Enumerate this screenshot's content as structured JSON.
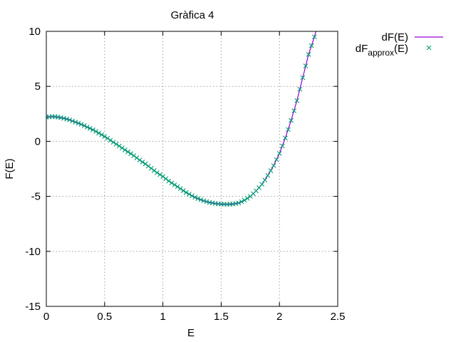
{
  "chart_data": {
    "type": "line",
    "title": "Gràfica 4",
    "xlabel": "E",
    "ylabel": "F(E)",
    "xlim": [
      0,
      2.5
    ],
    "ylim": [
      -15,
      10
    ],
    "xticks": [
      "0",
      "0.5",
      "1",
      "1.5",
      "2",
      "2.5"
    ],
    "yticks": [
      "10",
      "5",
      "0",
      "-5",
      "-10",
      "-15"
    ],
    "xtick_values": [
      0,
      0.5,
      1,
      1.5,
      2,
      2.5
    ],
    "ytick_values": [
      10,
      5,
      0,
      -5,
      -10,
      -15
    ],
    "grid": true,
    "legend_position": "top-right, outside plot",
    "series": [
      {
        "name": "dF(E)",
        "style": "line",
        "color": "#9400d3",
        "x": [
          0,
          0.05,
          0.1,
          0.15,
          0.2,
          0.25,
          0.3,
          0.35,
          0.4,
          0.45,
          0.5,
          0.55,
          0.6,
          0.65,
          0.7,
          0.75,
          0.8,
          0.85,
          0.9,
          0.95,
          1.0,
          1.05,
          1.1,
          1.15,
          1.2,
          1.25,
          1.3,
          1.35,
          1.4,
          1.45,
          1.5,
          1.55,
          1.6,
          1.65,
          1.7,
          1.75,
          1.8,
          1.85,
          1.9,
          1.95,
          2.0,
          2.05,
          2.1,
          2.15,
          2.2,
          2.25,
          2.3,
          2.32
        ],
        "y": [
          2.2,
          2.25,
          2.2,
          2.1,
          1.95,
          1.75,
          1.55,
          1.3,
          1.05,
          0.75,
          0.45,
          0.1,
          -0.25,
          -0.6,
          -0.95,
          -1.3,
          -1.7,
          -2.05,
          -2.45,
          -2.85,
          -3.2,
          -3.6,
          -3.95,
          -4.3,
          -4.65,
          -4.95,
          -5.2,
          -5.4,
          -5.55,
          -5.65,
          -5.7,
          -5.72,
          -5.7,
          -5.6,
          -5.35,
          -5.0,
          -4.5,
          -3.9,
          -3.1,
          -2.2,
          -1.1,
          0.3,
          1.9,
          3.7,
          5.8,
          7.9,
          9.5,
          10.3
        ]
      },
      {
        "name": "dF_approx(E)",
        "name_main": "dF",
        "name_sub": "approx",
        "name_tail": "(E)",
        "style": "markers",
        "marker": "x",
        "color": "#009e73",
        "x": [
          0,
          0.025,
          0.05,
          0.075,
          0.1,
          0.125,
          0.15,
          0.175,
          0.2,
          0.225,
          0.25,
          0.275,
          0.3,
          0.325,
          0.35,
          0.375,
          0.4,
          0.425,
          0.45,
          0.475,
          0.5,
          0.525,
          0.55,
          0.575,
          0.6,
          0.625,
          0.65,
          0.675,
          0.7,
          0.725,
          0.75,
          0.775,
          0.8,
          0.825,
          0.85,
          0.875,
          0.9,
          0.925,
          0.95,
          0.975,
          1.0,
          1.025,
          1.05,
          1.075,
          1.1,
          1.125,
          1.15,
          1.175,
          1.2,
          1.225,
          1.25,
          1.275,
          1.3,
          1.325,
          1.35,
          1.375,
          1.4,
          1.425,
          1.45,
          1.475,
          1.5,
          1.525,
          1.55,
          1.575,
          1.6,
          1.625,
          1.65,
          1.675,
          1.7,
          1.725,
          1.75,
          1.775,
          1.8,
          1.825,
          1.85,
          1.875,
          1.9,
          1.925,
          1.95,
          1.975,
          2.0,
          2.025,
          2.05,
          2.075,
          2.1,
          2.125,
          2.15,
          2.175,
          2.2,
          2.225,
          2.25,
          2.275,
          2.3
        ],
        "y": [
          2.2,
          2.23,
          2.25,
          2.24,
          2.2,
          2.16,
          2.1,
          2.03,
          1.95,
          1.85,
          1.75,
          1.65,
          1.55,
          1.43,
          1.3,
          1.18,
          1.05,
          0.9,
          0.75,
          0.6,
          0.45,
          0.28,
          0.1,
          -0.08,
          -0.25,
          -0.42,
          -0.6,
          -0.78,
          -0.95,
          -1.12,
          -1.3,
          -1.5,
          -1.7,
          -1.88,
          -2.05,
          -2.25,
          -2.45,
          -2.65,
          -2.85,
          -3.02,
          -3.2,
          -3.4,
          -3.6,
          -3.78,
          -3.95,
          -4.12,
          -4.3,
          -4.48,
          -4.65,
          -4.8,
          -4.95,
          -5.08,
          -5.2,
          -5.3,
          -5.4,
          -5.48,
          -5.55,
          -5.6,
          -5.65,
          -5.68,
          -5.7,
          -5.71,
          -5.72,
          -5.71,
          -5.7,
          -5.66,
          -5.6,
          -5.49,
          -5.35,
          -5.18,
          -5.0,
          -4.76,
          -4.5,
          -4.21,
          -3.9,
          -3.52,
          -3.1,
          -2.66,
          -2.2,
          -1.66,
          -1.1,
          -0.42,
          0.3,
          1.08,
          1.9,
          2.78,
          3.7,
          4.74,
          5.8,
          6.86,
          7.9,
          8.7,
          9.5
        ]
      }
    ]
  }
}
